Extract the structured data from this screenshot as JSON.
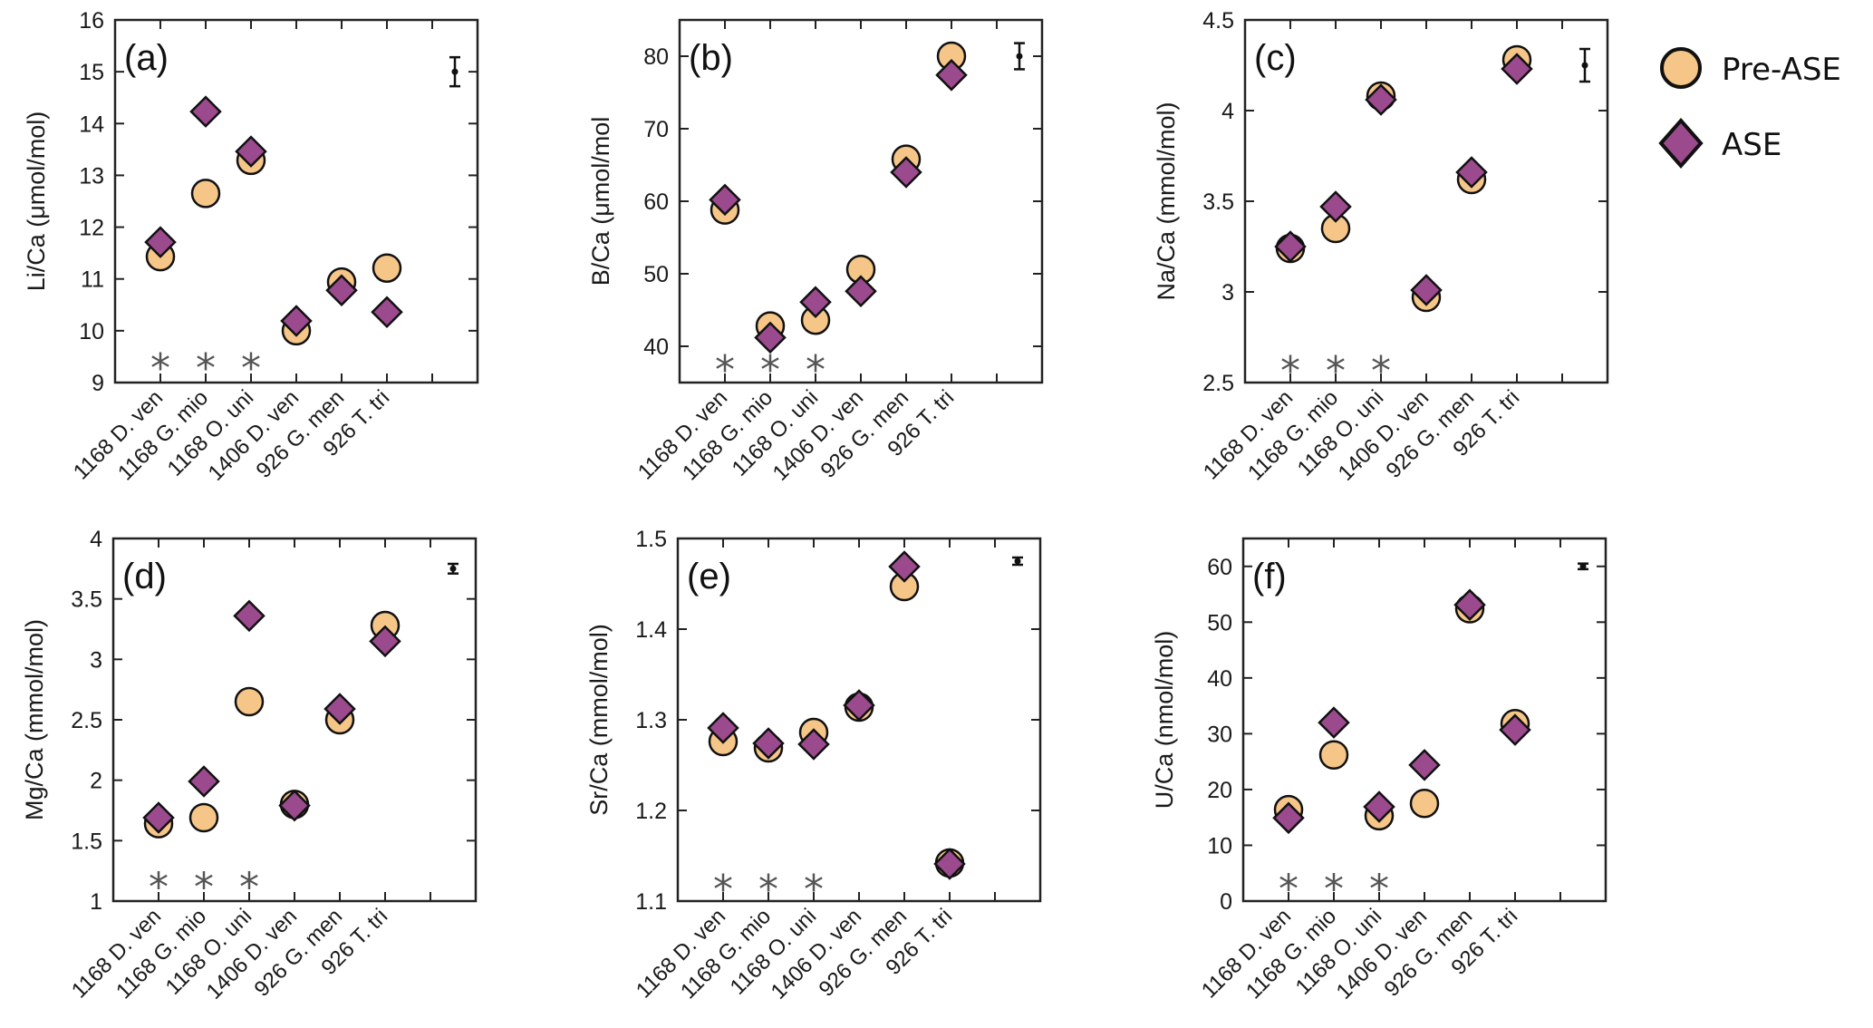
{
  "chart_data": {
    "type": "scatter",
    "categories": [
      "1168 D. ven",
      "1168 G. mio",
      "1168 O. uni",
      "1406 D. ven",
      "926 G. men",
      "926 T. tri"
    ],
    "legend": {
      "placement": "top-right",
      "entries": [
        {
          "name": "Pre-ASE",
          "marker": "circle",
          "color": "#F5C688"
        },
        {
          "name": "ASE",
          "marker": "diamond",
          "color": "#9B4A8E"
        }
      ]
    },
    "significance_marker": "*",
    "significant_categories": [
      "1168 D. ven",
      "1168 G. mio",
      "1168 O. uni"
    ],
    "panels": [
      {
        "label": "(a)",
        "ylabel": "Li/Ca (μmol/mol)",
        "ylim": [
          9,
          16
        ],
        "yticks": [
          9,
          10,
          11,
          12,
          13,
          14,
          15,
          16
        ],
        "series": [
          {
            "name": "Pre-ASE",
            "values": [
              11.43,
              12.65,
              13.29,
              10.0,
              10.94,
              11.21
            ]
          },
          {
            "name": "ASE",
            "values": [
              11.71,
              14.23,
              13.46,
              10.19,
              10.78,
              10.36
            ]
          }
        ],
        "error_bar": {
          "value": 15,
          "plus_minus": 0.28
        },
        "star_level": 9.4
      },
      {
        "label": "(b)",
        "ylabel": "B/Ca (μmol/mol",
        "ylim": [
          35,
          85
        ],
        "yticks": [
          40,
          50,
          60,
          70,
          80
        ],
        "series": [
          {
            "name": "Pre-ASE",
            "values": [
              58.8,
              42.8,
              43.6,
              50.6,
              65.8,
              80.0
            ]
          },
          {
            "name": "ASE",
            "values": [
              60.2,
              41.2,
              46.1,
              47.6,
              64.0,
              77.4
            ]
          }
        ],
        "error_bar": {
          "value": 80,
          "plus_minus": 1.8
        },
        "star_level": 37.6
      },
      {
        "label": "(c)",
        "ylabel": "Na/Ca (mmol/mol)",
        "ylim": [
          2.5,
          4.5
        ],
        "yticks": [
          2.5,
          3,
          3.5,
          4,
          4.5
        ],
        "series": [
          {
            "name": "Pre-ASE",
            "values": [
              3.24,
              3.35,
              4.08,
              2.97,
              3.62,
              4.28
            ]
          },
          {
            "name": "ASE",
            "values": [
              3.25,
              3.47,
              4.06,
              3.01,
              3.66,
              4.23
            ]
          }
        ],
        "error_bar": {
          "value": 4.25,
          "plus_minus": 0.09
        },
        "star_level": 2.6
      },
      {
        "label": "(d)",
        "ylabel": "Mg/Ca (mmol/mol)",
        "ylim": [
          1,
          4
        ],
        "yticks": [
          1,
          1.5,
          2,
          2.5,
          3,
          3.5,
          4
        ],
        "series": [
          {
            "name": "Pre-ASE",
            "values": [
              1.64,
              1.69,
              2.65,
              1.8,
              2.5,
              3.28
            ]
          },
          {
            "name": "ASE",
            "values": [
              1.69,
              1.99,
              3.36,
              1.79,
              2.59,
              3.15
            ]
          }
        ],
        "error_bar": {
          "value": 3.75,
          "plus_minus": 0.04
        },
        "star_level": 1.17
      },
      {
        "label": "(e)",
        "ylabel": "Sr/Ca (mmol/mol)",
        "ylim": [
          1.1,
          1.5
        ],
        "yticks": [
          1.1,
          1.2,
          1.3,
          1.4,
          1.5
        ],
        "series": [
          {
            "name": "Pre-ASE",
            "values": [
              1.276,
              1.269,
              1.286,
              1.314,
              1.447,
              1.142
            ]
          },
          {
            "name": "ASE",
            "values": [
              1.291,
              1.274,
              1.273,
              1.316,
              1.469,
              1.141
            ]
          }
        ],
        "error_bar": {
          "value": 1.475,
          "plus_minus": 0.004
        },
        "star_level": 1.12
      },
      {
        "label": "(f)",
        "ylabel": "U/Ca (nmol/mol)",
        "ylim": [
          0,
          65
        ],
        "yticks": [
          0,
          10,
          20,
          30,
          40,
          50,
          60
        ],
        "series": [
          {
            "name": "Pre-ASE",
            "values": [
              16.4,
              26.2,
              15.3,
              17.5,
              52.4,
              31.8
            ]
          },
          {
            "name": "ASE",
            "values": [
              14.9,
              32.0,
              16.9,
              24.4,
              53.1,
              30.7
            ]
          }
        ],
        "error_bar": {
          "value": 60,
          "plus_minus": 0.5
        },
        "star_level": 3.3
      }
    ]
  }
}
